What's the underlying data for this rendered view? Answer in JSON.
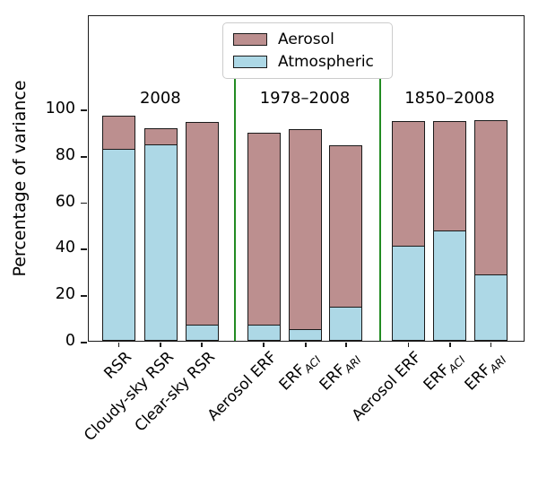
{
  "chart_data": {
    "type": "bar",
    "stacked": true,
    "title": "",
    "ylabel": "Percentage of variance",
    "ylim": [
      0,
      140.5
    ],
    "yticks": [
      0,
      20,
      40,
      60,
      80,
      100
    ],
    "grid": false,
    "categories": [
      {
        "text": "RSR",
        "sub": ""
      },
      {
        "text": "Cloudy-sky RSR",
        "sub": ""
      },
      {
        "text": "Clear-sky RSR",
        "sub": ""
      },
      {
        "text": "Aerosol ERF",
        "sub": ""
      },
      {
        "text": "ERF",
        "sub": "ACI"
      },
      {
        "text": "ERF",
        "sub": "ARI"
      },
      {
        "text": "Aerosol ERF",
        "sub": ""
      },
      {
        "text": "ERF",
        "sub": "ACI"
      },
      {
        "text": "ERF",
        "sub": "ARI"
      }
    ],
    "series": [
      {
        "name": "Atmospheric",
        "color": "#add8e6",
        "values": [
          82.5,
          84.5,
          7,
          7,
          5,
          14.5,
          41,
          47.5,
          28.5
        ]
      },
      {
        "name": "Aerosol",
        "color": "#bc8f8f",
        "values": [
          14.5,
          7,
          87,
          82.5,
          86,
          69.5,
          53.5,
          47,
          66.5
        ]
      }
    ],
    "totals": [
      97,
      91.5,
      94,
      89.5,
      91,
      84,
      94.5,
      94.5,
      95
    ],
    "groups": [
      {
        "label": "2008",
        "from": 0,
        "to": 2
      },
      {
        "label": "1978–2008",
        "from": 3,
        "to": 5
      },
      {
        "label": "1850–2008",
        "from": 6,
        "to": 8
      }
    ],
    "separators": {
      "color": "#228B22",
      "top_value": 113
    },
    "legend": [
      {
        "label": "Aerosol",
        "color": "#bc8f8f"
      },
      {
        "label": "Atmospheric",
        "color": "#add8e6"
      }
    ],
    "legend_position": "upper center, inside axes",
    "bar_edge_color": "#1a1a1a",
    "background_color": "#ffffff"
  }
}
